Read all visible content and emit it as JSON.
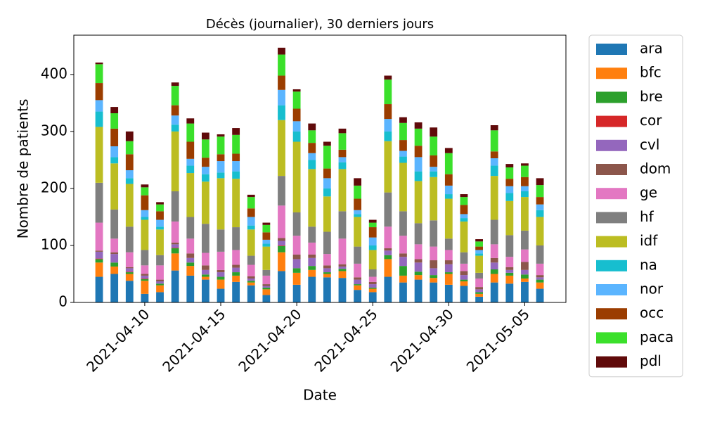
{
  "chart_data": {
    "type": "stacked_bar",
    "title": "Décès (journalier), 30 derniers jours",
    "xlabel": "Date",
    "ylabel": "Nombre de patients",
    "x": [
      "2021-04-07",
      "2021-04-08",
      "2021-04-09",
      "2021-04-10",
      "2021-04-11",
      "2021-04-12",
      "2021-04-13",
      "2021-04-14",
      "2021-04-15",
      "2021-04-16",
      "2021-04-17",
      "2021-04-18",
      "2021-04-19",
      "2021-04-20",
      "2021-04-21",
      "2021-04-22",
      "2021-04-23",
      "2021-04-24",
      "2021-04-25",
      "2021-04-26",
      "2021-04-27",
      "2021-04-28",
      "2021-04-29",
      "2021-04-30",
      "2021-05-01",
      "2021-05-02",
      "2021-05-03",
      "2021-05-04",
      "2021-05-05",
      "2021-05-06"
    ],
    "xlim": [
      "2021-04-05T08:00Z",
      "2021-05-07T17:00Z"
    ],
    "xticks": [
      "2021-04-10",
      "2021-04-15",
      "2021-04-20",
      "2021-04-25",
      "2021-04-30",
      "2021-05-05"
    ],
    "ylim": [
      0,
      469
    ],
    "yticks": [
      0,
      100,
      200,
      300,
      400
    ],
    "grid": false,
    "legend_position": "outside-right",
    "series": [
      {
        "name": "ara",
        "color": "#1f77b4",
        "values": [
          45,
          50,
          38,
          15,
          18,
          56,
          47,
          40,
          24,
          36,
          30,
          13,
          55,
          31,
          45,
          44,
          43,
          22,
          18,
          45,
          35,
          40,
          35,
          31,
          29,
          10,
          35,
          33,
          36,
          24
        ]
      },
      {
        "name": "bfc",
        "color": "#ff7f0e",
        "values": [
          25,
          13,
          12,
          23,
          12,
          30,
          17,
          5,
          16,
          11,
          5,
          10,
          33,
          21,
          12,
          6,
          12,
          8,
          6,
          31,
          12,
          8,
          8,
          19,
          8,
          5,
          15,
          14,
          6,
          11
        ]
      },
      {
        "name": "bre",
        "color": "#2ca02c",
        "values": [
          6,
          7,
          3,
          3,
          3,
          9,
          6,
          4,
          5,
          6,
          3,
          3,
          11,
          8,
          7,
          3,
          4,
          2,
          2,
          7,
          17,
          6,
          5,
          3,
          3,
          3,
          8,
          5,
          7,
          5
        ]
      },
      {
        "name": "cor",
        "color": "#d62728",
        "values": [
          1,
          0,
          1,
          1,
          0,
          1,
          0,
          0,
          0,
          0,
          0,
          0,
          1,
          0,
          0,
          0,
          0,
          0,
          0,
          0,
          0,
          0,
          0,
          0,
          0,
          0,
          0,
          0,
          0,
          0
        ]
      },
      {
        "name": "cvl",
        "color": "#9467bd",
        "values": [
          12,
          15,
          6,
          5,
          4,
          6,
          8,
          8,
          8,
          8,
          4,
          3,
          8,
          16,
          14,
          7,
          4,
          8,
          6,
          8,
          16,
          16,
          12,
          14,
          8,
          5,
          12,
          5,
          8,
          4
        ]
      },
      {
        "name": "dom",
        "color": "#8c564b",
        "values": [
          2,
          3,
          2,
          3,
          3,
          3,
          8,
          8,
          4,
          5,
          4,
          3,
          5,
          8,
          6,
          5,
          4,
          4,
          4,
          4,
          6,
          6,
          14,
          7,
          7,
          4,
          8,
          5,
          14,
          4
        ]
      },
      {
        "name": "ge",
        "color": "#e377c2",
        "values": [
          49,
          24,
          26,
          15,
          25,
          37,
          26,
          22,
          32,
          26,
          20,
          15,
          57,
          33,
          21,
          20,
          45,
          24,
          9,
          38,
          31,
          26,
          24,
          18,
          13,
          15,
          24,
          18,
          22,
          20
        ]
      },
      {
        "name": "hf",
        "color": "#7f7f7f",
        "values": [
          70,
          51,
          45,
          27,
          18,
          53,
          38,
          51,
          39,
          40,
          16,
          10,
          52,
          41,
          28,
          39,
          48,
          30,
          13,
          60,
          43,
          37,
          46,
          20,
          20,
          10,
          43,
          38,
          33,
          32
        ]
      },
      {
        "name": "idf",
        "color": "#bcbd22",
        "values": [
          98,
          81,
          75,
          53,
          45,
          105,
          77,
          74,
          90,
          85,
          46,
          41,
          98,
          124,
          101,
          62,
          74,
          52,
          34,
          90,
          85,
          74,
          76,
          70,
          54,
          30,
          77,
          60,
          59,
          50
        ]
      },
      {
        "name": "na",
        "color": "#17becf",
        "values": [
          27,
          11,
          10,
          5,
          5,
          12,
          13,
          13,
          10,
          13,
          7,
          5,
          26,
          18,
          16,
          14,
          12,
          5,
          8,
          17,
          11,
          17,
          10,
          8,
          6,
          4,
          18,
          14,
          10,
          12
        ]
      },
      {
        "name": "nor",
        "color": "#5bb5ff",
        "values": [
          20,
          19,
          14,
          12,
          12,
          16,
          12,
          13,
          20,
          18,
          15,
          7,
          27,
          18,
          12,
          18,
          9,
          7,
          14,
          22,
          10,
          25,
          8,
          15,
          7,
          6,
          13,
          12,
          9,
          10
        ]
      },
      {
        "name": "occ",
        "color": "#9b3d00",
        "values": [
          30,
          31,
          28,
          26,
          15,
          18,
          30,
          16,
          12,
          13,
          15,
          13,
          25,
          22,
          18,
          17,
          13,
          20,
          18,
          26,
          19,
          20,
          20,
          20,
          16,
          6,
          12,
          13,
          16,
          13
        ]
      },
      {
        "name": "paca",
        "color": "#3be02b",
        "values": [
          33,
          27,
          23,
          14,
          12,
          34,
          32,
          32,
          31,
          33,
          20,
          13,
          37,
          30,
          22,
          40,
          29,
          23,
          8,
          43,
          30,
          30,
          33,
          37,
          14,
          9,
          37,
          20,
          20,
          21
        ]
      },
      {
        "name": "pdl",
        "color": "#600a0a",
        "values": [
          3,
          11,
          17,
          5,
          4,
          6,
          9,
          12,
          4,
          12,
          4,
          4,
          12,
          4,
          12,
          7,
          8,
          13,
          5,
          7,
          10,
          11,
          16,
          9,
          5,
          4,
          9,
          6,
          4,
          12
        ]
      }
    ]
  }
}
